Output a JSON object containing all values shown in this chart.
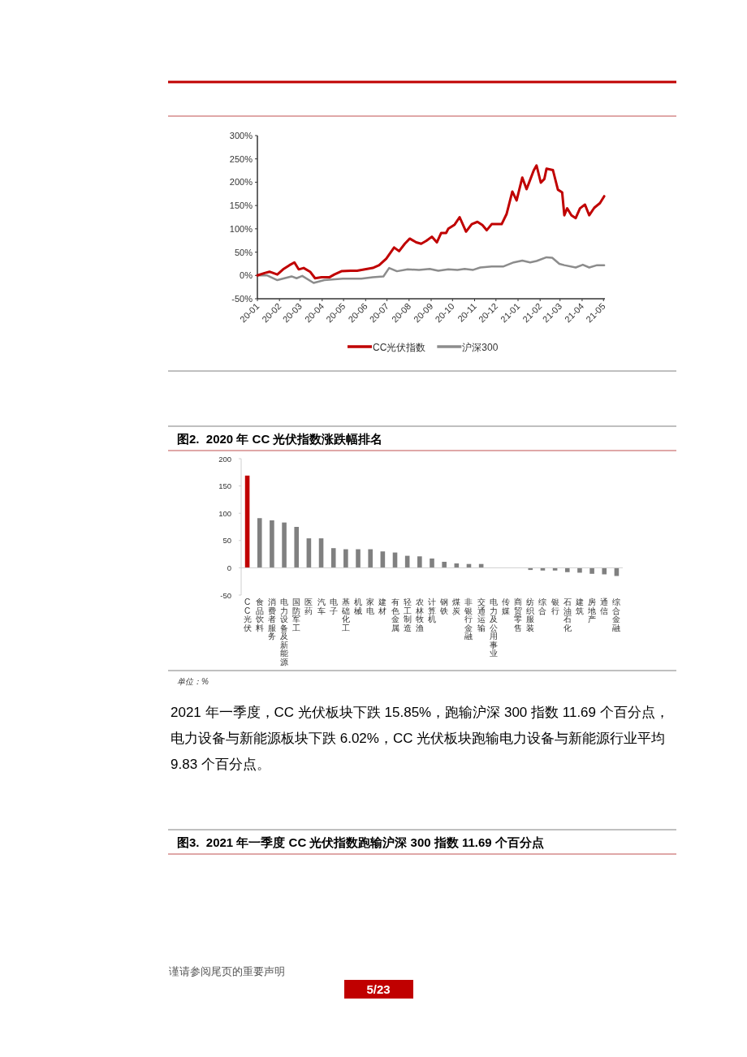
{
  "chart_data": [
    {
      "type": "line",
      "legend": "bottom",
      "ylim": [
        -50,
        300
      ],
      "yticks": [
        {
          "value": -50,
          "label": "-50%"
        },
        {
          "value": 0,
          "label": "0%"
        },
        {
          "value": 50,
          "label": "50%"
        },
        {
          "value": 100,
          "label": "100%"
        },
        {
          "value": 150,
          "label": "150%"
        },
        {
          "value": 200,
          "label": "200%"
        },
        {
          "value": 250,
          "label": "250%"
        },
        {
          "value": 300,
          "label": "300%"
        }
      ],
      "xlim": [
        "2020-01-01",
        "2021-05-03"
      ],
      "xticks": [
        {
          "value": "2020-01-01",
          "label": "20-01"
        },
        {
          "value": "2020-02-01",
          "label": "20-02"
        },
        {
          "value": "2020-03-01",
          "label": "20-03"
        },
        {
          "value": "2020-04-01",
          "label": "20-04"
        },
        {
          "value": "2020-05-01",
          "label": "20-05"
        },
        {
          "value": "2020-06-01",
          "label": "20-06"
        },
        {
          "value": "2020-07-01",
          "label": "20-07"
        },
        {
          "value": "2020-08-01",
          "label": "20-08"
        },
        {
          "value": "2020-09-01",
          "label": "20-09"
        },
        {
          "value": "2020-10-01",
          "label": "20-10"
        },
        {
          "value": "2020-11-01",
          "label": "20-11"
        },
        {
          "value": "2020-12-01",
          "label": "20-12"
        },
        {
          "value": "2021-01-01",
          "label": "21-01"
        },
        {
          "value": "2021-02-01",
          "label": "21-02"
        },
        {
          "value": "2021-03-01",
          "label": "21-03"
        },
        {
          "value": "2021-04-01",
          "label": "21-04"
        },
        {
          "value": "2021-05-01",
          "label": "21-05"
        }
      ],
      "series": [
        {
          "name": "CC光伏指数",
          "color": "#c00000",
          "x": [
            "2020-01-01",
            "2020-01-11",
            "2020-01-18",
            "2020-01-29",
            "2020-02-06",
            "2020-02-15",
            "2020-02-22",
            "2020-02-28",
            "2020-03-06",
            "2020-03-15",
            "2020-03-22",
            "2020-03-31",
            "2020-04-11",
            "2020-04-18",
            "2020-04-28",
            "2020-05-11",
            "2020-05-20",
            "2020-05-31",
            "2020-06-11",
            "2020-06-20",
            "2020-06-30",
            "2020-07-11",
            "2020-07-18",
            "2020-07-26",
            "2020-08-02",
            "2020-08-11",
            "2020-08-18",
            "2020-08-25",
            "2020-09-02",
            "2020-09-09",
            "2020-09-15",
            "2020-09-22",
            "2020-09-25",
            "2020-10-04",
            "2020-10-11",
            "2020-10-20",
            "2020-10-28",
            "2020-11-05",
            "2020-11-12",
            "2020-11-18",
            "2020-11-25",
            "2020-12-09",
            "2020-12-16",
            "2020-12-24",
            "2020-12-30",
            "2021-01-07",
            "2021-01-13",
            "2021-01-17",
            "2021-01-23",
            "2021-01-27",
            "2021-02-02",
            "2021-02-07",
            "2021-02-10",
            "2021-02-19",
            "2021-02-26",
            "2021-03-04",
            "2021-03-07",
            "2021-03-11",
            "2021-03-17",
            "2021-03-23",
            "2021-03-29",
            "2021-04-05",
            "2021-04-11",
            "2021-04-18",
            "2021-04-26",
            "2021-05-02"
          ],
          "values": [
            0,
            5,
            8,
            2,
            13,
            22,
            28,
            13,
            16,
            8,
            -6,
            -4,
            -4,
            2,
            9,
            10,
            10,
            13,
            16,
            22,
            36,
            60,
            52,
            68,
            79,
            71,
            68,
            74,
            83,
            71,
            91,
            91,
            100,
            109,
            125,
            94,
            110,
            115,
            108,
            97,
            110,
            110,
            132,
            180,
            161,
            210,
            185,
            201,
            225,
            236,
            199,
            207,
            229,
            226,
            184,
            178,
            129,
            144,
            129,
            123,
            144,
            152,
            129,
            145,
            155,
            170
          ]
        },
        {
          "name": "沪深300",
          "color": "#8c8c8c",
          "x": [
            "2020-01-01",
            "2020-01-15",
            "2020-01-29",
            "2020-02-18",
            "2020-02-25",
            "2020-03-04",
            "2020-03-20",
            "2020-04-04",
            "2020-04-30",
            "2020-05-26",
            "2020-06-11",
            "2020-06-26",
            "2020-07-04",
            "2020-07-15",
            "2020-07-30",
            "2020-08-15",
            "2020-08-30",
            "2020-09-11",
            "2020-09-25",
            "2020-10-08",
            "2020-10-18",
            "2020-10-30",
            "2020-11-09",
            "2020-11-25",
            "2020-12-11",
            "2020-12-26",
            "2021-01-07",
            "2021-01-18",
            "2021-01-27",
            "2021-02-10",
            "2021-02-18",
            "2021-02-28",
            "2021-03-07",
            "2021-03-23",
            "2021-04-02",
            "2021-04-11",
            "2021-04-22",
            "2021-05-02"
          ],
          "values": [
            0,
            0,
            -10,
            -2,
            -6,
            -1,
            -16,
            -10,
            -7,
            -7,
            -4,
            -2,
            16,
            9,
            13,
            12,
            14,
            10,
            13,
            12,
            14,
            12,
            17,
            19,
            19,
            28,
            32,
            28,
            31,
            39,
            38,
            25,
            22,
            17,
            23,
            17,
            22,
            22
          ]
        }
      ]
    },
    {
      "type": "bar",
      "title": "图2.  2020 年 CC 光伏指数涨跌幅排名",
      "ylim": [
        -50,
        200
      ],
      "yticks": [
        -50,
        0,
        50,
        100,
        150,
        200
      ],
      "categories": [
        "CC光伏",
        "食品饮料",
        "消费者服务",
        "电力设备及新能源",
        "国防军工",
        "医药",
        "汽车",
        "电子",
        "基础化工",
        "机械",
        "家电",
        "建材",
        "有色金属",
        "轻工制造",
        "农林牧渔",
        "计算机",
        "钢铁",
        "煤炭",
        "非银行金融",
        "交通运输",
        "电力及公用事业",
        "传媒",
        "商贸零售",
        "纺织服装",
        "综合",
        "银行",
        "石油石化",
        "建筑",
        "房地产",
        "通信",
        "综合金融"
      ],
      "values": [
        169,
        91,
        87,
        83,
        75,
        54,
        54,
        36,
        34,
        34,
        34,
        30,
        28,
        22,
        21,
        17,
        11,
        8,
        7,
        7,
        0,
        0,
        0,
        -4,
        -5,
        -5,
        -8,
        -9,
        -11,
        -12,
        -15
      ],
      "colors": [
        "#c00000",
        "#808080",
        "#808080",
        "#808080",
        "#808080",
        "#808080",
        "#808080",
        "#808080",
        "#808080",
        "#808080",
        "#808080",
        "#808080",
        "#808080",
        "#808080",
        "#808080",
        "#808080",
        "#808080",
        "#808080",
        "#808080",
        "#808080",
        "#808080",
        "#808080",
        "#808080",
        "#808080",
        "#808080",
        "#808080",
        "#808080",
        "#808080",
        "#808080",
        "#808080",
        "#808080"
      ],
      "annotations": [
        "单位：%",
        "2021 年一季度，CC 光伏板块下跌 15.85%，跑输沪深 300 指数 11.69 个百分点，电力设备与新能源板块下跌 6.02%，CC 光伏板块跑输电力设备与新能源行业平均 9.83 个百分点。",
        "图3.  2021 年一季度 CC 光伏指数跑输沪深 300 指数 11.69 个百分点",
        "谨请参阅尾页的重要声明",
        "5/23"
      ]
    }
  ]
}
